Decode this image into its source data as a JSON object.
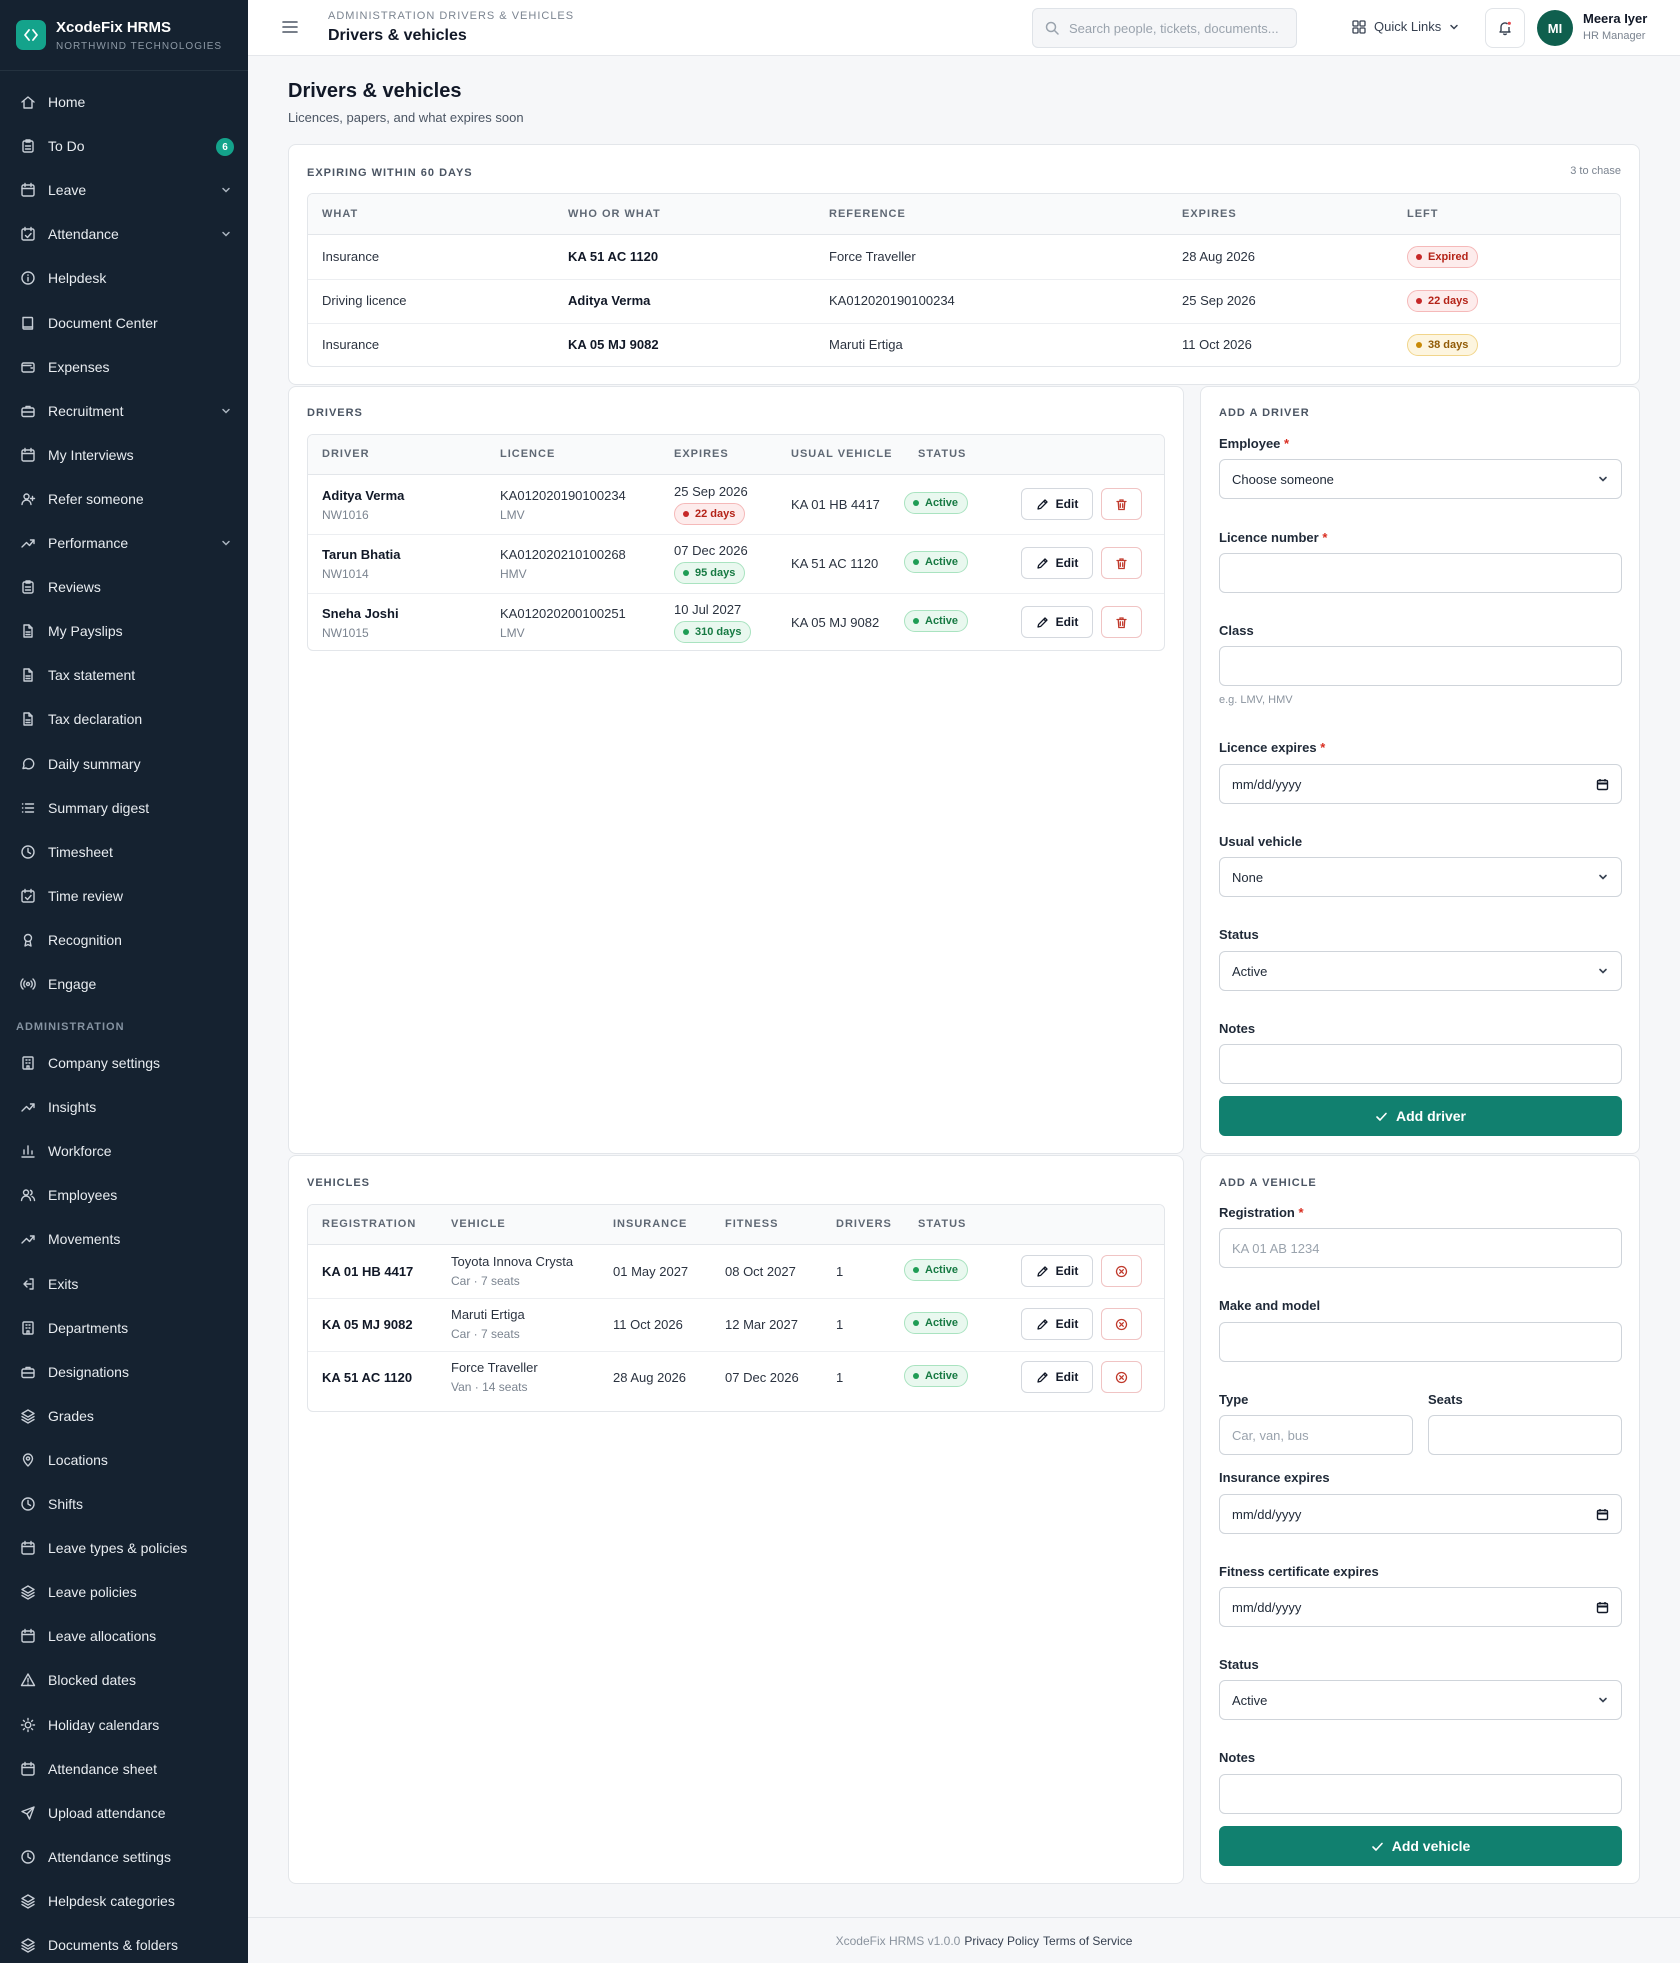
{
  "brand": {
    "name": "XcodeFix HRMS",
    "org": "NORTHWIND TECHNOLOGIES",
    "icon": "code-brackets-icon"
  },
  "sidebar": {
    "items": [
      {
        "label": "Home",
        "icon": "home-icon"
      },
      {
        "label": "To Do",
        "icon": "clipboard-icon",
        "badge": "6"
      },
      {
        "label": "Leave",
        "icon": "calendar-icon",
        "expandable": true
      },
      {
        "label": "Attendance",
        "icon": "calendar-check-icon",
        "expandable": true
      },
      {
        "label": "Helpdesk",
        "icon": "info-circle-icon"
      },
      {
        "label": "Document Center",
        "icon": "book-icon"
      },
      {
        "label": "Expenses",
        "icon": "wallet-icon"
      },
      {
        "label": "Recruitment",
        "icon": "briefcase-icon",
        "expandable": true
      },
      {
        "label": "My Interviews",
        "icon": "calendar-icon"
      },
      {
        "label": "Refer someone",
        "icon": "user-plus-icon"
      },
      {
        "label": "Performance",
        "icon": "trending-up-icon",
        "expandable": true
      },
      {
        "label": "Reviews",
        "icon": "clipboard-icon"
      },
      {
        "label": "My Payslips",
        "icon": "file-icon"
      },
      {
        "label": "Tax statement",
        "icon": "file-icon"
      },
      {
        "label": "Tax declaration",
        "icon": "file-icon"
      },
      {
        "label": "Daily summary",
        "icon": "message-icon"
      },
      {
        "label": "Summary digest",
        "icon": "list-icon"
      },
      {
        "label": "Timesheet",
        "icon": "clock-icon"
      },
      {
        "label": "Time review",
        "icon": "calendar-check-icon"
      },
      {
        "label": "Recognition",
        "icon": "award-icon"
      },
      {
        "label": "Engage",
        "icon": "broadcast-icon"
      }
    ],
    "admin_section": "ADMINISTRATION",
    "admin_items": [
      {
        "label": "Company settings",
        "icon": "building-icon"
      },
      {
        "label": "Insights",
        "icon": "trending-up-icon"
      },
      {
        "label": "Workforce",
        "icon": "bar-chart-icon"
      },
      {
        "label": "Employees",
        "icon": "users-icon"
      },
      {
        "label": "Movements",
        "icon": "trending-up-icon"
      },
      {
        "label": "Exits",
        "icon": "log-out-icon"
      },
      {
        "label": "Departments",
        "icon": "building-icon"
      },
      {
        "label": "Designations",
        "icon": "briefcase-icon"
      },
      {
        "label": "Grades",
        "icon": "layers-icon"
      },
      {
        "label": "Locations",
        "icon": "map-pin-icon"
      },
      {
        "label": "Shifts",
        "icon": "clock-icon"
      },
      {
        "label": "Leave types & policies",
        "icon": "calendar-icon"
      },
      {
        "label": "Leave policies",
        "icon": "layers-icon"
      },
      {
        "label": "Leave allocations",
        "icon": "calendar-icon"
      },
      {
        "label": "Blocked dates",
        "icon": "alert-triangle-icon"
      },
      {
        "label": "Holiday calendars",
        "icon": "sun-icon"
      },
      {
        "label": "Attendance sheet",
        "icon": "calendar-icon"
      },
      {
        "label": "Upload attendance",
        "icon": "send-icon"
      },
      {
        "label": "Attendance settings",
        "icon": "clock-icon"
      },
      {
        "label": "Helpdesk categories",
        "icon": "layers-icon"
      },
      {
        "label": "Documents & folders",
        "icon": "layers-icon"
      }
    ]
  },
  "header": {
    "breadcrumb": "ADMINISTRATION DRIVERS & VEHICLES",
    "title": "Drivers & vehicles",
    "search_placeholder": "Search people, tickets, documents...",
    "quick_links": "Quick Links",
    "user": {
      "initials": "MI",
      "name": "Meera Iyer",
      "role": "HR Manager"
    }
  },
  "page": {
    "title": "Drivers & vehicles",
    "subtitle": "Licences, papers, and what expires soon"
  },
  "expiring": {
    "title": "EXPIRING WITHIN 60 DAYS",
    "count": "3 to chase",
    "columns": [
      "WHAT",
      "WHO OR WHAT",
      "REFERENCE",
      "EXPIRES",
      "LEFT"
    ],
    "rows": [
      {
        "what": "Insurance",
        "who": "KA 51 AC 1120",
        "reference": "Force Traveller",
        "expires": "28 Aug 2026",
        "left": "Expired",
        "tone": "red"
      },
      {
        "what": "Driving licence",
        "who": "Aditya Verma",
        "reference": "KA012020190100234",
        "expires": "25 Sep 2026",
        "left": "22 days",
        "tone": "red"
      },
      {
        "what": "Insurance",
        "who": "KA 05 MJ 9082",
        "reference": "Maruti Ertiga",
        "expires": "11 Oct 2026",
        "left": "38 days",
        "tone": "amber"
      }
    ]
  },
  "drivers": {
    "title": "DRIVERS",
    "columns": [
      "DRIVER",
      "LICENCE",
      "EXPIRES",
      "USUAL VEHICLE",
      "STATUS"
    ],
    "edit_label": "Edit",
    "rows": [
      {
        "name": "Aditya Verma",
        "code": "NW1016",
        "licence": "KA012020190100234",
        "class": "LMV",
        "expires": "25 Sep 2026",
        "left": "22 days",
        "tone": "red",
        "vehicle": "KA 01 HB 4417",
        "status": "Active"
      },
      {
        "name": "Tarun Bhatia",
        "code": "NW1014",
        "licence": "KA012020210100268",
        "class": "HMV",
        "expires": "07 Dec 2026",
        "left": "95 days",
        "tone": "green",
        "vehicle": "KA 51 AC 1120",
        "status": "Active"
      },
      {
        "name": "Sneha Joshi",
        "code": "NW1015",
        "licence": "KA012020200100251",
        "class": "LMV",
        "expires": "10 Jul 2027",
        "left": "310 days",
        "tone": "green",
        "vehicle": "KA 05 MJ 9082",
        "status": "Active"
      }
    ]
  },
  "vehicles": {
    "title": "VEHICLES",
    "columns": [
      "REGISTRATION",
      "VEHICLE",
      "INSURANCE",
      "FITNESS",
      "DRIVERS",
      "STATUS"
    ],
    "edit_label": "Edit",
    "rows": [
      {
        "reg": "KA 01 HB 4417",
        "model": "Toyota Innova Crysta",
        "detail": "Car · 7 seats",
        "insurance": "01 May 2027",
        "fitness": "08 Oct 2027",
        "drivers": "1",
        "status": "Active"
      },
      {
        "reg": "KA 05 MJ 9082",
        "model": "Maruti Ertiga",
        "detail": "Car · 7 seats",
        "insurance": "11 Oct 2026",
        "fitness": "12 Mar 2027",
        "drivers": "1",
        "status": "Active"
      },
      {
        "reg": "KA 51 AC 1120",
        "model": "Force Traveller",
        "detail": "Van · 14 seats",
        "insurance": "28 Aug 2026",
        "fitness": "07 Dec 2026",
        "drivers": "1",
        "status": "Active"
      }
    ]
  },
  "add_driver": {
    "title": "ADD A DRIVER",
    "employee_label": "Employee",
    "employee_value": "Choose someone",
    "licence_label": "Licence number",
    "class_label": "Class",
    "class_hint": "e.g. LMV, HMV",
    "expires_label": "Licence expires",
    "expires_placeholder": "mm/dd/yyyy",
    "vehicle_label": "Usual vehicle",
    "vehicle_value": "None",
    "status_label": "Status",
    "status_value": "Active",
    "notes_label": "Notes",
    "submit": "Add driver"
  },
  "add_vehicle": {
    "title": "ADD A VEHICLE",
    "reg_label": "Registration",
    "reg_placeholder": "KA 01 AB 1234",
    "model_label": "Make and model",
    "type_label": "Type",
    "type_placeholder": "Car, van, bus",
    "seats_label": "Seats",
    "insurance_label": "Insurance expires",
    "insurance_placeholder": "mm/dd/yyyy",
    "fitness_label": "Fitness certificate expires",
    "fitness_placeholder": "mm/dd/yyyy",
    "status_label": "Status",
    "status_value": "Active",
    "notes_label": "Notes",
    "submit": "Add vehicle"
  },
  "footer": {
    "version": "XcodeFix HRMS v1.0.0",
    "privacy": "Privacy Policy",
    "terms": "Terms of Service"
  },
  "colors": {
    "accent": "#11806f",
    "sidebar": "#152230",
    "danger": "#b42318",
    "warning": "#915b06",
    "success": "#177a43"
  }
}
